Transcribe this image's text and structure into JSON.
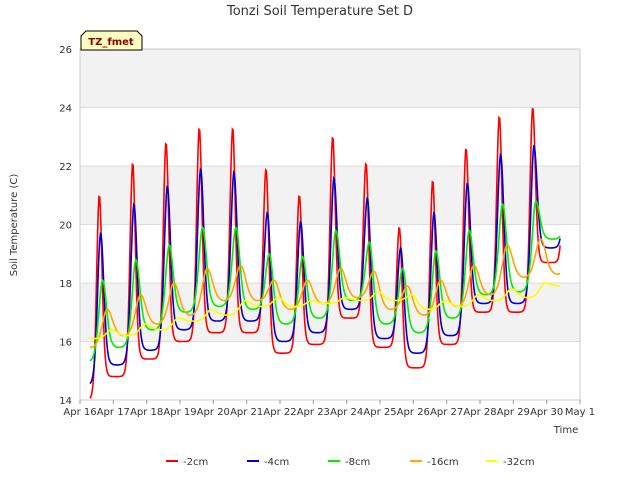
{
  "chart_data": {
    "type": "line",
    "title": "Tonzi Soil Temperature Set D",
    "xlabel": "Time",
    "ylabel": "Soil Temperature (C)",
    "badge": "TZ_fmet",
    "xlim": [
      16,
      31
    ],
    "ylim": [
      14,
      26
    ],
    "x_ticks": [
      {
        "v": 16,
        "label": "Apr 16"
      },
      {
        "v": 17,
        "label": "Apr 17"
      },
      {
        "v": 18,
        "label": "Apr 18"
      },
      {
        "v": 19,
        "label": "Apr 19"
      },
      {
        "v": 20,
        "label": "Apr 20"
      },
      {
        "v": 21,
        "label": "Apr 21"
      },
      {
        "v": 22,
        "label": "Apr 22"
      },
      {
        "v": 23,
        "label": "Apr 23"
      },
      {
        "v": 24,
        "label": "Apr 24"
      },
      {
        "v": 25,
        "label": "Apr 25"
      },
      {
        "v": 26,
        "label": "Apr 26"
      },
      {
        "v": 27,
        "label": "Apr 27"
      },
      {
        "v": 28,
        "label": "Apr 28"
      },
      {
        "v": 29,
        "label": "Apr 29"
      },
      {
        "v": 30,
        "label": "Apr 30"
      },
      {
        "v": 31,
        "label": "May 1"
      }
    ],
    "y_ticks": [
      14,
      16,
      18,
      20,
      22,
      24,
      26
    ],
    "grid": true,
    "bands": true,
    "legend_position": "bottom",
    "series": [
      {
        "name": "-2cm",
        "color": "#ff0000",
        "phase": 0.58,
        "sharp": 4,
        "mins": [
          14.0,
          14.8,
          15.4,
          16.0,
          16.3,
          16.3,
          15.6,
          15.9,
          16.8,
          15.8,
          15.1,
          15.9,
          17.0,
          17.0,
          18.7,
          18.7
        ],
        "maxs": [
          21.0,
          22.1,
          22.8,
          23.3,
          23.3,
          21.9,
          21.0,
          23.0,
          22.1,
          19.9,
          21.5,
          22.6,
          23.7,
          24.0,
          24.0,
          24.0
        ]
      },
      {
        "name": "-4cm",
        "color": "#0000cc",
        "phase": 0.62,
        "sharp": 3,
        "mins": [
          14.5,
          15.2,
          15.7,
          16.4,
          16.7,
          16.7,
          16.0,
          16.3,
          17.1,
          16.1,
          15.6,
          16.2,
          17.3,
          17.3,
          19.2,
          19.2
        ],
        "maxs": [
          19.7,
          20.7,
          21.3,
          21.9,
          21.8,
          20.4,
          20.1,
          21.6,
          20.9,
          19.2,
          20.4,
          21.4,
          22.4,
          22.7,
          22.7,
          22.7
        ]
      },
      {
        "name": "-8cm",
        "color": "#00ee00",
        "phase": 0.68,
        "sharp": 2,
        "mins": [
          15.3,
          15.8,
          16.4,
          17.0,
          17.2,
          17.1,
          16.6,
          16.8,
          17.4,
          16.6,
          16.3,
          16.8,
          17.6,
          17.7,
          19.5,
          19.5
        ],
        "maxs": [
          18.1,
          18.8,
          19.3,
          19.9,
          19.9,
          19.0,
          18.9,
          19.8,
          19.4,
          18.5,
          19.1,
          19.8,
          20.7,
          20.8,
          20.8,
          20.8
        ]
      },
      {
        "name": "-16cm",
        "color": "#ffa500",
        "phase": 0.82,
        "sharp": 1,
        "mins": [
          15.8,
          16.2,
          16.6,
          16.9,
          17.4,
          17.4,
          17.1,
          17.3,
          17.5,
          17.1,
          16.9,
          17.2,
          17.6,
          18.2,
          18.3,
          18.3
        ],
        "maxs": [
          17.1,
          17.6,
          18.0,
          18.5,
          18.6,
          18.1,
          18.1,
          18.5,
          18.4,
          17.9,
          18.1,
          18.6,
          19.3,
          19.5,
          19.5,
          19.5
        ]
      },
      {
        "name": "-32cm",
        "color": "#ffff00",
        "phase": 0.95,
        "sharp": 1,
        "mins": [
          16.1,
          16.2,
          16.4,
          16.7,
          16.9,
          17.2,
          17.2,
          17.3,
          17.4,
          17.4,
          17.1,
          17.2,
          17.4,
          17.5,
          17.9,
          18.2
        ],
        "maxs": [
          16.4,
          16.6,
          16.8,
          17.1,
          17.4,
          17.5,
          17.4,
          17.5,
          17.7,
          17.6,
          17.4,
          17.6,
          17.8,
          18.0,
          18.2,
          18.3
        ]
      }
    ]
  }
}
